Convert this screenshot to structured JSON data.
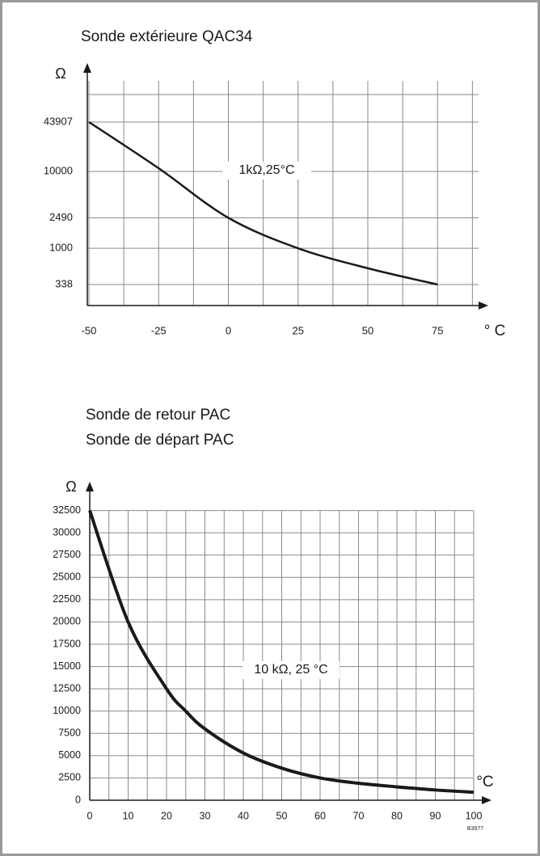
{
  "chart_data": [
    {
      "type": "line",
      "title": "Sonde extérieure QAC34",
      "ylabel": "Ω",
      "xlabel": "° C",
      "annotation": "1kΩ,25°C",
      "log": true,
      "grid": true,
      "color": "#1a1a1a",
      "x": [
        -50,
        -25,
        0,
        25,
        50,
        75
      ],
      "values": [
        43907,
        11000,
        2490,
        1000,
        550,
        338
      ],
      "xlim": [
        -50,
        90
      ],
      "xticks": [
        -50,
        -25,
        0,
        25,
        50,
        75
      ],
      "ylim": [
        180,
        100000
      ],
      "yticks": [
        338,
        1000,
        2490,
        10000,
        43907
      ]
    },
    {
      "type": "line",
      "title": [
        "Sonde de retour PAC",
        "Sonde de départ PAC"
      ],
      "ylabel": "Ω",
      "xlabel": "°C",
      "annotation": "10 kΩ, 25 °C",
      "log": false,
      "grid": true,
      "color": "#1a1a1a",
      "x": [
        0,
        10,
        20,
        25,
        30,
        40,
        50,
        60,
        70,
        80,
        90,
        100
      ],
      "values": [
        32500,
        20000,
        12500,
        10000,
        8000,
        5300,
        3600,
        2500,
        1900,
        1500,
        1150,
        900
      ],
      "xlim": [
        0,
        104
      ],
      "xticks": [
        0,
        10,
        20,
        30,
        40,
        50,
        60,
        70,
        80,
        90,
        100
      ],
      "ylim": [
        0,
        35000
      ],
      "yticks": [
        0,
        2500,
        5000,
        7500,
        10000,
        12500,
        15000,
        17500,
        20000,
        22500,
        25000,
        27500,
        30000,
        32500
      ]
    }
  ],
  "code": "B3977"
}
